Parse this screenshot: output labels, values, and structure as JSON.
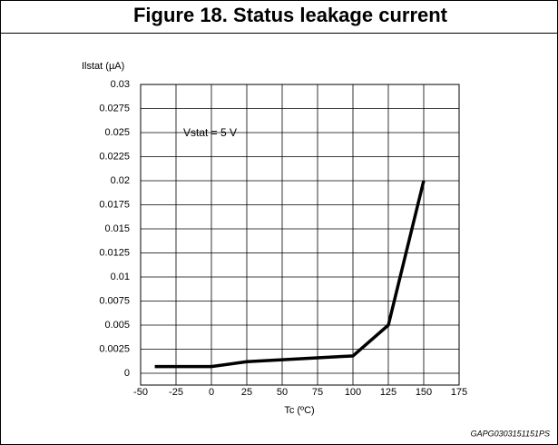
{
  "chart_data": {
    "type": "line",
    "title": "Figure 18. Status leakage current",
    "y_label": "Ilstat (µA)",
    "x_label": "Tc (ºC)",
    "annotation": "Vstat = 5 V",
    "code": "GAPG0303151151PS",
    "x": [
      -40,
      0,
      25,
      50,
      75,
      100,
      125,
      150
    ],
    "series": [
      {
        "name": "Ilstat",
        "color": "#000000",
        "values": [
          0.0007,
          0.0007,
          0.0012,
          0.0014,
          0.0016,
          0.0018,
          0.005,
          0.02
        ]
      }
    ],
    "xlim": [
      -50,
      175
    ],
    "xticks": [
      -50,
      -25,
      0,
      25,
      50,
      75,
      100,
      125,
      150,
      175
    ],
    "ylim": [
      0,
      0.03
    ],
    "yticks": [
      0,
      0.0025,
      0.005,
      0.0075,
      0.01,
      0.0125,
      0.015,
      0.0175,
      0.02,
      0.0225,
      0.025,
      0.0275,
      0.03
    ],
    "grid": true
  }
}
